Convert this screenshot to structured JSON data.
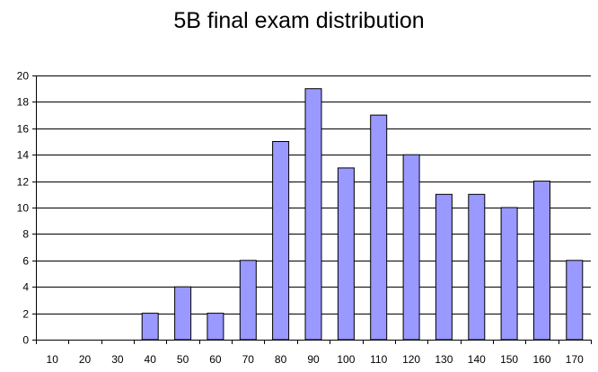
{
  "chart_data": {
    "type": "bar",
    "title": "5B final exam distribution",
    "xlabel": "",
    "ylabel": "",
    "categories": [
      "10",
      "20",
      "30",
      "40",
      "50",
      "60",
      "70",
      "80",
      "90",
      "100",
      "110",
      "120",
      "130",
      "140",
      "150",
      "160",
      "170"
    ],
    "values": [
      0,
      0,
      0,
      2,
      4,
      2,
      6,
      15,
      19,
      13,
      17,
      14,
      11,
      11,
      10,
      12,
      6
    ],
    "ylim": [
      0,
      20
    ],
    "yticks": [
      0,
      2,
      4,
      6,
      8,
      10,
      12,
      14,
      16,
      18,
      20
    ],
    "grid": true,
    "legend": "none",
    "colors": {
      "bar_fill": "#9999ff",
      "bar_stroke": "#000000",
      "grid": "#000000",
      "background": "#ffffff"
    }
  }
}
